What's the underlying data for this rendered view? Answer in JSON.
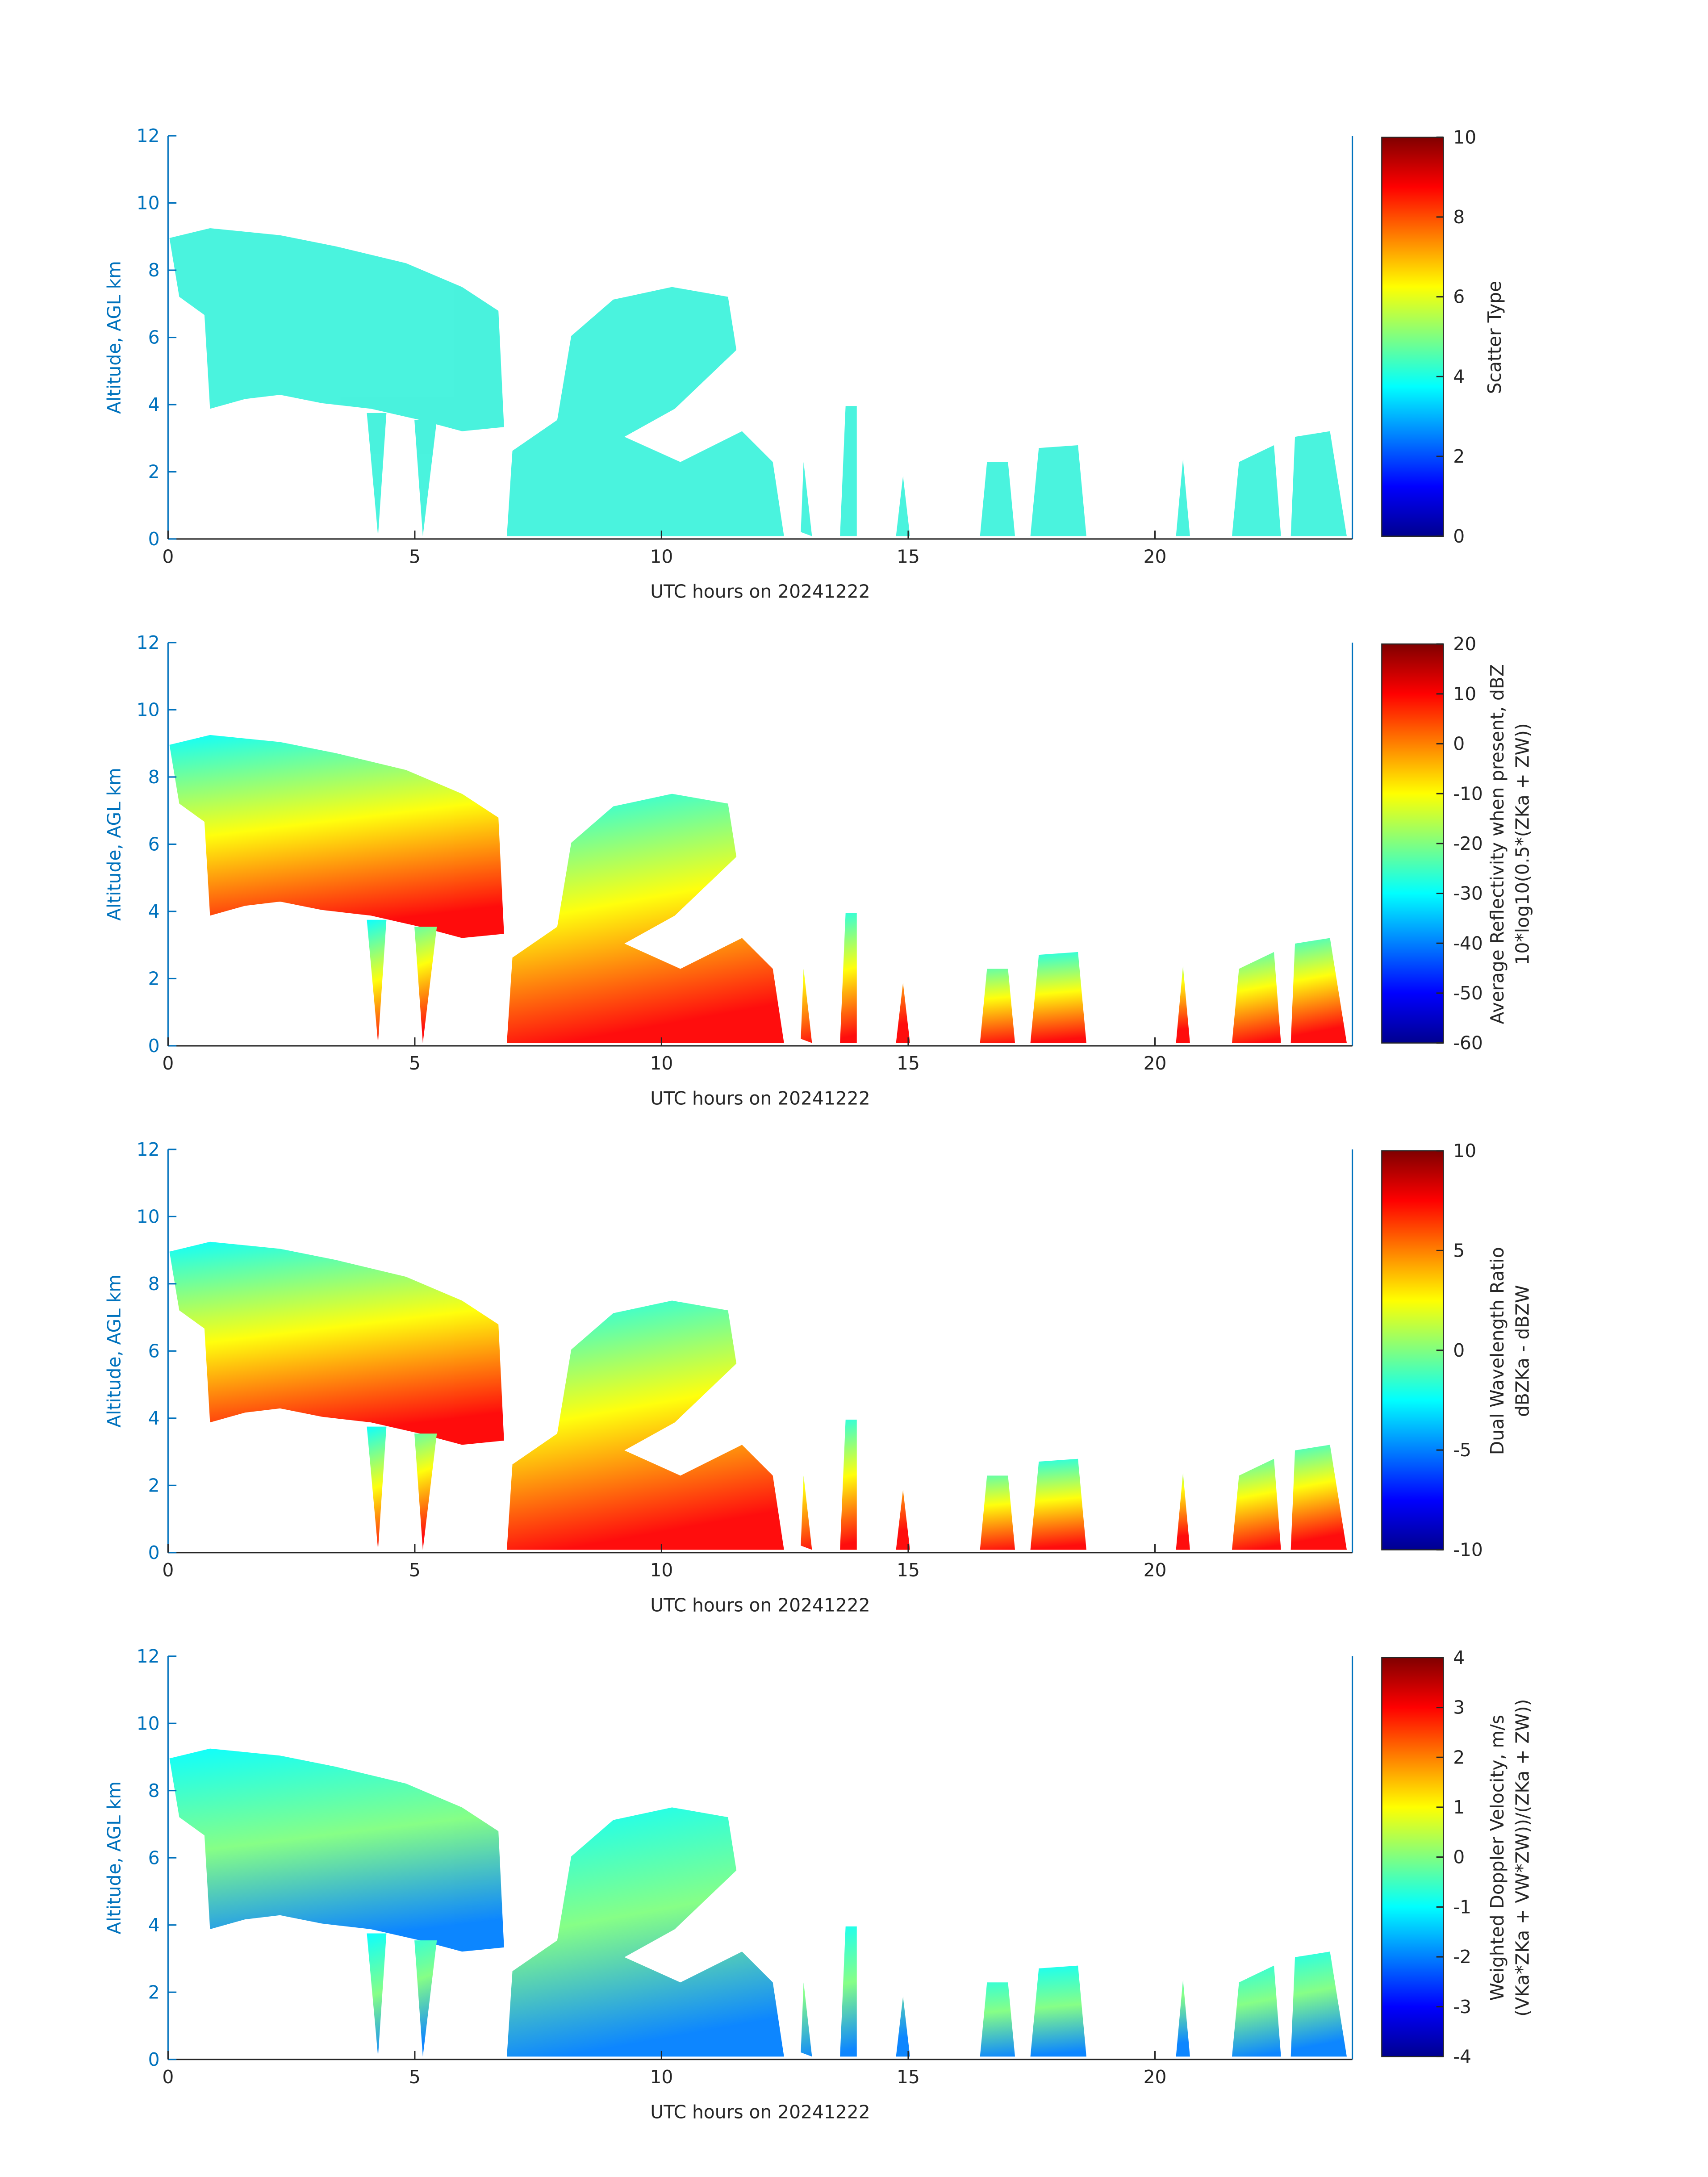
{
  "chart_data": [
    {
      "type": "heatmap",
      "xlabel": "UTC hours on 20241222",
      "ylabel": "Altitude, AGL km",
      "xlim": [
        0,
        24
      ],
      "xticks": [
        0,
        5,
        10,
        15,
        20
      ],
      "ylim": [
        0,
        12
      ],
      "yticks": [
        0,
        2,
        4,
        6,
        8,
        10,
        12
      ],
      "colorbar_label": [
        "Scatter Type"
      ],
      "clim": [
        0,
        10
      ],
      "cticks": [
        0,
        2,
        4,
        6,
        8,
        10
      ],
      "colormap": [
        "#00008f",
        "#0000ff",
        "#0080ff",
        "#00ffff",
        "#80ff80",
        "#ffff00",
        "#ff8000",
        "#ff0000",
        "#800000"
      ]
    },
    {
      "type": "heatmap",
      "xlabel": "UTC hours on 20241222",
      "ylabel": "Altitude, AGL km",
      "xlim": [
        0,
        24
      ],
      "xticks": [
        0,
        5,
        10,
        15,
        20
      ],
      "ylim": [
        0,
        12
      ],
      "yticks": [
        0,
        2,
        4,
        6,
        8,
        10,
        12
      ],
      "colorbar_label": [
        "Average Reflectivity when present, dBZ",
        "10*log10(0.5*(ZKa + ZW))"
      ],
      "clim": [
        -60,
        20
      ],
      "cticks": [
        -60,
        -50,
        -40,
        -30,
        -20,
        -10,
        0,
        10,
        20
      ],
      "colormap": [
        "#00008f",
        "#0000ff",
        "#0080ff",
        "#00ffff",
        "#80ff80",
        "#ffff00",
        "#ff8000",
        "#ff0000",
        "#800000"
      ]
    },
    {
      "type": "heatmap",
      "xlabel": "UTC hours on 20241222",
      "ylabel": "Altitude, AGL km",
      "xlim": [
        0,
        24
      ],
      "xticks": [
        0,
        5,
        10,
        15,
        20
      ],
      "ylim": [
        0,
        12
      ],
      "yticks": [
        0,
        2,
        4,
        6,
        8,
        10,
        12
      ],
      "colorbar_label": [
        "Dual Wavelength Ratio",
        "dBZKa - dBZW"
      ],
      "clim": [
        -10,
        10
      ],
      "cticks": [
        -10,
        -5,
        0,
        5,
        10
      ],
      "colormap": [
        "#00008f",
        "#0000ff",
        "#0080ff",
        "#00ffff",
        "#80ff80",
        "#ffff00",
        "#ff8000",
        "#ff0000",
        "#800000"
      ]
    },
    {
      "type": "heatmap",
      "xlabel": "UTC hours on 20241222",
      "ylabel": "Altitude, AGL km",
      "xlim": [
        0,
        24
      ],
      "xticks": [
        0,
        5,
        10,
        15,
        20
      ],
      "ylim": [
        0,
        12
      ],
      "yticks": [
        0,
        2,
        4,
        6,
        8,
        10,
        12
      ],
      "colorbar_label": [
        "Weighted Doppler Velocity, m/s",
        "(VKa*ZKa + VW*ZW))/(ZKa + ZW))"
      ],
      "clim": [
        -4,
        4
      ],
      "cticks": [
        -4,
        -3,
        -2,
        -1,
        0,
        1,
        2,
        3,
        4
      ],
      "colormap": [
        "#00008f",
        "#0000ff",
        "#0080ff",
        "#00ffff",
        "#80ff80",
        "#ffff00",
        "#ff8000",
        "#ff0000",
        "#800000"
      ]
    }
  ]
}
